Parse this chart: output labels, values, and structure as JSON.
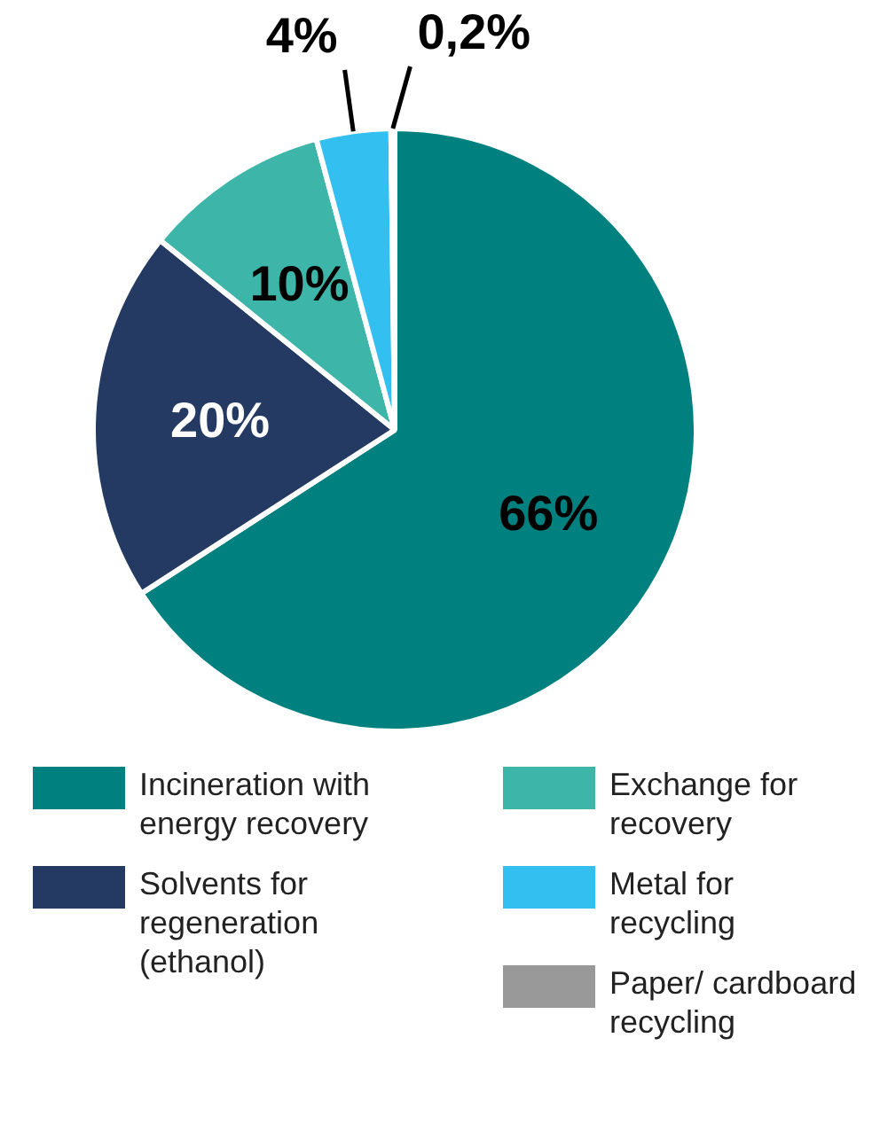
{
  "chart_data": {
    "type": "pie",
    "categories": [
      "Incineration with energy recovery",
      "Solvents for regeneration (ethanol)",
      "Exchange for recovery",
      "Metal for recycling",
      "Paper/ cardboard recycling"
    ],
    "values": [
      66,
      20,
      10,
      4,
      0.2
    ],
    "colors": [
      "#00807f",
      "#243a63",
      "#3db5a8",
      "#33bff0",
      "#999999"
    ],
    "value_labels": [
      "66%",
      "20%",
      "10%",
      "4%",
      "0,2%"
    ],
    "legend": "bottom"
  }
}
